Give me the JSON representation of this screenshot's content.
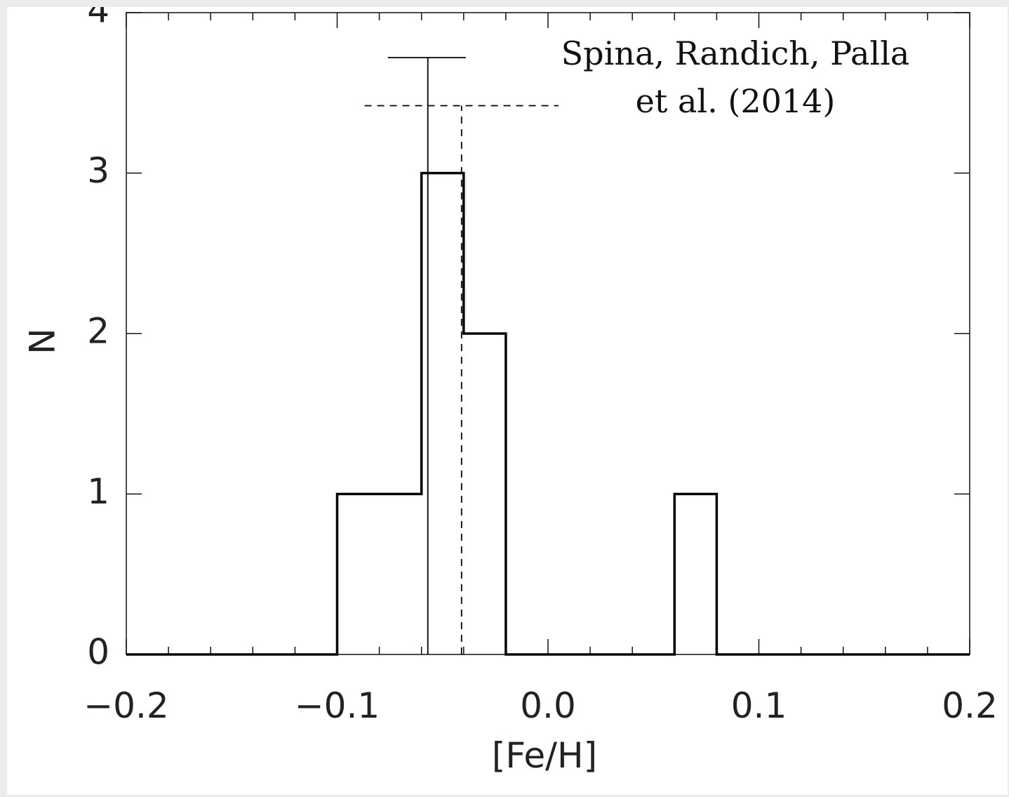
{
  "chart_data": {
    "type": "bar",
    "xlabel": "[Fe/H]",
    "ylabel": "N",
    "xlim": [
      -0.2,
      0.2
    ],
    "ylim": [
      0,
      4
    ],
    "x_ticks": [
      "−0.2",
      "−0.1",
      "0.0",
      "0.1",
      "0.2"
    ],
    "y_ticks": [
      "0",
      "1",
      "2",
      "3",
      "4"
    ],
    "histogram": {
      "bin_edges": [
        -0.2,
        -0.1,
        -0.06,
        -0.04,
        -0.02,
        0.06,
        0.08,
        0.2
      ],
      "counts": [
        0,
        1,
        3,
        2,
        0,
        1,
        0
      ]
    },
    "reference_lines": [
      {
        "style": "solid",
        "x": -0.057,
        "top_y": 3.72,
        "bar_x_range": [
          -0.076,
          -0.039
        ]
      },
      {
        "style": "dashed",
        "x": -0.041,
        "top_y": 3.42,
        "bar_x_range": [
          -0.087,
          0.005
        ]
      }
    ],
    "annotation": [
      "Spina, Randich, Palla",
      "et al. (2014)"
    ],
    "grid": false
  },
  "colors": {
    "background": "#ececec",
    "plot_background": "#ffffff",
    "line": "#000000"
  }
}
